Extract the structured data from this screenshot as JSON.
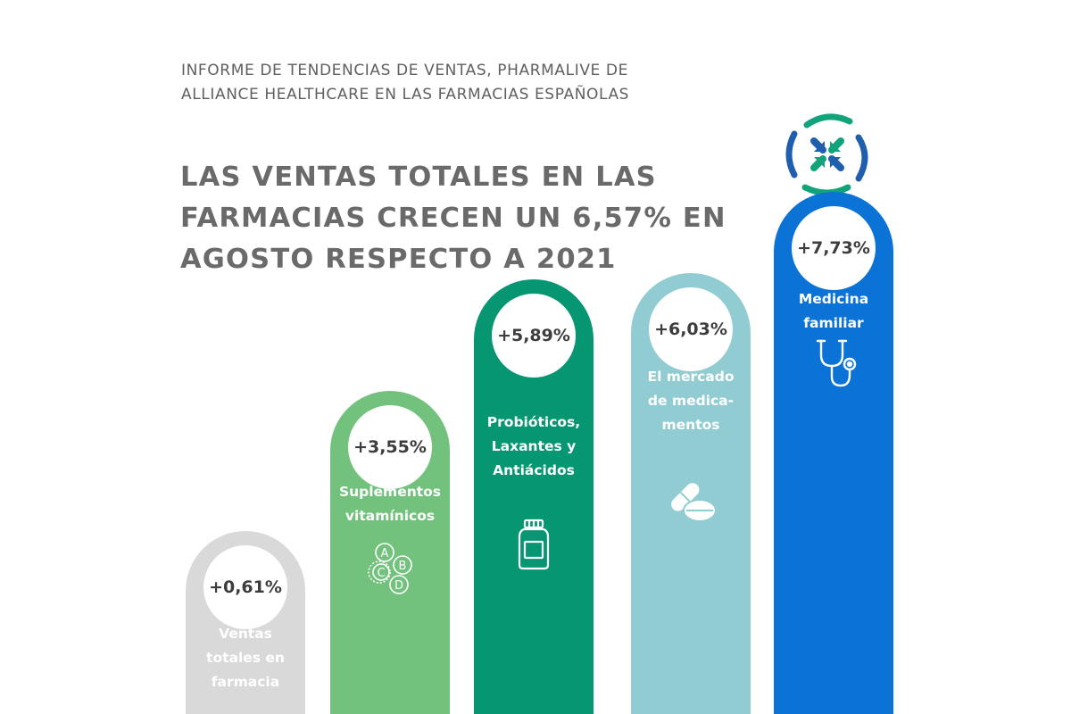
{
  "header": {
    "subtitle": "INFORME DE TENDENCIAS DE VENTAS, PHARMALIVE DE ALLIANCE HEALTHCARE EN LAS FARMACIAS ESPAÑOLAS",
    "title": "LAS VENTAS TOTALES EN LAS FARMACIAS CRECEN UN 6,57% EN AGOSTO RESPECTO A 2021"
  },
  "colors": {
    "gray": "#d9d9d9",
    "light_green": "#72c17c",
    "green": "#079672",
    "light_blue": "#92ccd3",
    "blue": "#0a73d5",
    "logo_green": "#13a37a",
    "logo_blue": "#1f5fae"
  },
  "icons": {
    "logo": "cross-arrows-logo-icon",
    "suplementos": "vitamin-abcd-icon",
    "probioticos": "medicine-bottle-icon",
    "medicamentos": "pills-icon",
    "medicina": "stethoscope-icon"
  },
  "chart_data": {
    "type": "bar",
    "categories": [
      "Ventas totales en farmacia",
      "Suplementos vitamínicos",
      "Probióticos, Laxantes y Antiácidos",
      "El mercado de medicamentos",
      "Medicina familiar"
    ],
    "values": [
      0.61,
      3.55,
      5.89,
      6.03,
      7.73
    ],
    "value_labels": [
      "+0,61%",
      "+3,55%",
      "+5,89%",
      "+6,03%",
      "+7,73%"
    ],
    "label_lines": [
      [
        "Ventas",
        "totales en",
        "farmacia"
      ],
      [
        "Suplementos",
        "vitamínicos"
      ],
      [
        "Probióticos,",
        "Laxantes y",
        "Antiácidos"
      ],
      [
        "El mercado",
        "de medica-",
        "mentos"
      ],
      [
        "Medicina",
        "familiar"
      ]
    ],
    "bar_colors": [
      "#d9d9d9",
      "#72c17c",
      "#079672",
      "#92ccd3",
      "#0a73d5"
    ],
    "icon_names": [
      "",
      "vitamin-abcd-icon",
      "medicine-bottle-icon",
      "pills-icon",
      "stethoscope-icon"
    ],
    "xlabel": "",
    "ylabel": ""
  }
}
